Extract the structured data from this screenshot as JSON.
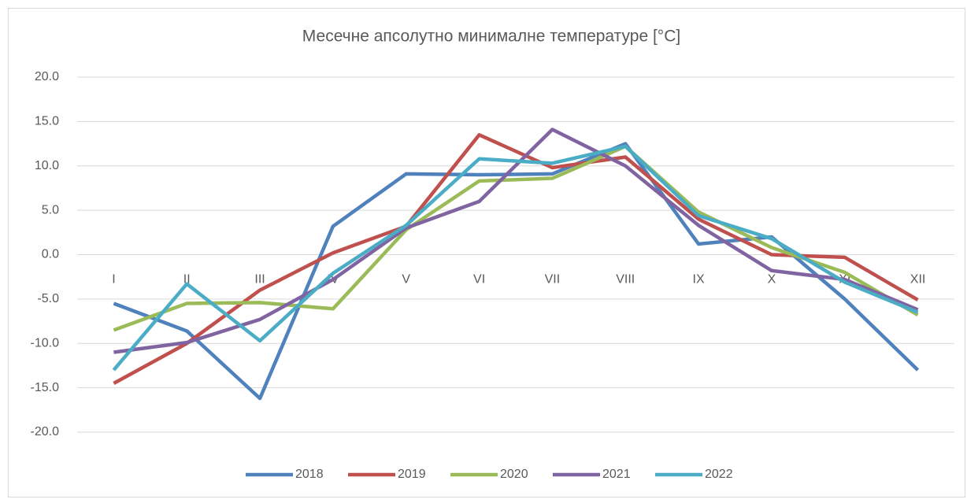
{
  "chart_data": {
    "type": "line",
    "title": "Месечне апсолутно минималне температуре [°C]",
    "categories": [
      "I",
      "II",
      "III",
      "IV",
      "V",
      "VI",
      "VII",
      "VIII",
      "IX",
      "X",
      "XI",
      "XII"
    ],
    "series": [
      {
        "name": "2018",
        "color": "#4f81bd",
        "values": [
          -5.5,
          -8.6,
          -16.2,
          3.2,
          9.1,
          9.0,
          9.1,
          12.5,
          1.2,
          2.0,
          -5.0,
          -13.0
        ]
      },
      {
        "name": "2019",
        "color": "#c0504d",
        "values": [
          -14.5,
          -10.0,
          -4.0,
          0.2,
          3.2,
          13.5,
          9.8,
          11.0,
          4.0,
          0.0,
          -0.3,
          -5.1
        ]
      },
      {
        "name": "2020",
        "color": "#9bbb59",
        "values": [
          -8.5,
          -5.5,
          -5.4,
          -6.1,
          2.8,
          8.3,
          8.6,
          12.2,
          4.8,
          0.8,
          -2.0,
          -6.8
        ]
      },
      {
        "name": "2021",
        "color": "#8064a2",
        "values": [
          -11.0,
          -9.9,
          -7.3,
          -2.8,
          3.0,
          6.0,
          14.1,
          10.0,
          3.3,
          -1.8,
          -2.8,
          -6.2
        ]
      },
      {
        "name": "2022",
        "color": "#4bacc6",
        "values": [
          -13.0,
          -3.3,
          -9.7,
          -2.1,
          3.3,
          10.8,
          10.3,
          12.2,
          4.4,
          1.8,
          -3.1,
          -6.5
        ]
      }
    ],
    "ylim": [
      -20,
      20
    ],
    "yticks": [
      {
        "value": -20,
        "label": "-20.0"
      },
      {
        "value": -15,
        "label": "-15.0"
      },
      {
        "value": -10,
        "label": "-10.0"
      },
      {
        "value": -5,
        "label": "-5.0"
      },
      {
        "value": 0,
        "label": "0.0"
      },
      {
        "value": 5,
        "label": "5.0"
      },
      {
        "value": 10,
        "label": "10.0"
      },
      {
        "value": 15,
        "label": "15.0"
      },
      {
        "value": 20,
        "label": "20.0"
      }
    ],
    "grid": true,
    "legend": "bottom"
  }
}
